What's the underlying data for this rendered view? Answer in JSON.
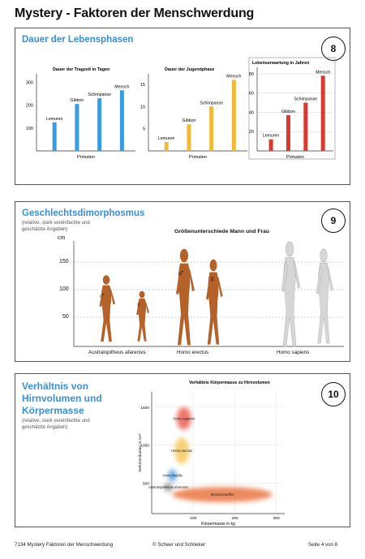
{
  "title": "Mystery - Faktoren der Menschwerdung",
  "footer": {
    "left": "7134 Mystery Faktoren der Menschwerdung",
    "center": "© Scheer und Schlieker",
    "right": "Seite 4 von 8"
  },
  "cards": {
    "card8": {
      "title": "Dauer der Lebensphasen",
      "number": "8",
      "colors": {
        "tragzeit": "#3a9be0",
        "jugend": "#f0b937",
        "leben": "#d93a2f"
      }
    },
    "card9": {
      "title": "Geschlechtsdimorphosmus",
      "note": "(relative, stark vereinfachte und geschätzte Angaben)",
      "number": "9",
      "figure_title": "Größenunterschiede Mann und Frau",
      "unit": "cm",
      "ticks": [
        "150",
        "100",
        "50"
      ],
      "species": [
        "Australopitheus afarensis",
        "Homo erectus",
        "Homo sapiens"
      ],
      "male_symbol": "♂",
      "female_symbol": "♀"
    },
    "card10": {
      "title_line1": "Verhältnis von",
      "title_line2": "Hirnvolumen und",
      "title_line3": "Körpermasse",
      "note": "(relative, stark vereinfachte und geschätzte Angaben)",
      "number": "10"
    }
  },
  "chart_data": [
    {
      "type": "bar",
      "title": "Dauer der Tragzeit in Tagen",
      "xlabel": "Primaten",
      "ylabel": "",
      "categories": [
        "Lemuren",
        "Gibbon",
        "Schimpanse",
        "Mensch"
      ],
      "values": [
        125,
        205,
        230,
        265
      ],
      "ylim": [
        0,
        330
      ],
      "yticks": [
        100,
        200,
        300
      ]
    },
    {
      "type": "bar",
      "title": "Dauer der Jugendphase",
      "xlabel": "Primaten",
      "ylabel": "",
      "categories": [
        "Lemuren",
        "Gibbon",
        "Schimpanse",
        "Mensch"
      ],
      "values": [
        2,
        6,
        10,
        16
      ],
      "ylim": [
        0,
        17
      ],
      "yticks": [
        5,
        10,
        15
      ]
    },
    {
      "type": "bar",
      "title": "Lebenserwartung in Jahren",
      "xlabel": "Primaten",
      "ylabel": "",
      "categories": [
        "Lemuren",
        "Gibbon",
        "Schimpanse",
        "Mensch"
      ],
      "values": [
        12,
        37,
        50,
        78
      ],
      "ylim": [
        0,
        85
      ],
      "yticks": [
        20,
        40,
        60,
        80
      ]
    },
    {
      "type": "scatter",
      "title": "Verhältnis Körpermasse zu Hirnvolumen",
      "xlabel": "Körpermasse in kg",
      "ylabel": "Gehirnvolumen in cm³",
      "xlim": [
        0,
        320
      ],
      "ylim": [
        100,
        1700
      ],
      "xticks": [
        100,
        200,
        300
      ],
      "yticks": [
        500,
        1000,
        1500
      ],
      "series": [
        {
          "name": "Homo sapiens",
          "x": [
            60,
            95
          ],
          "y": [
            1200,
            1500
          ],
          "color": "#e8493a"
        },
        {
          "name": "Homo erectus",
          "x": [
            55,
            90
          ],
          "y": [
            750,
            1100
          ],
          "color": "#f3c24a"
        },
        {
          "name": "Homo habilis",
          "x": [
            40,
            60
          ],
          "y": [
            520,
            680
          ],
          "color": "#3a8fd6"
        },
        {
          "name": "Australopithecus afarensis",
          "x": [
            30,
            50
          ],
          "y": [
            390,
            500
          ],
          "color": "#7a7a7a"
        },
        {
          "name": "Menschenaffen",
          "x": [
            50,
            290
          ],
          "y": [
            250,
            450
          ],
          "color": "#e8642a"
        }
      ]
    }
  ]
}
